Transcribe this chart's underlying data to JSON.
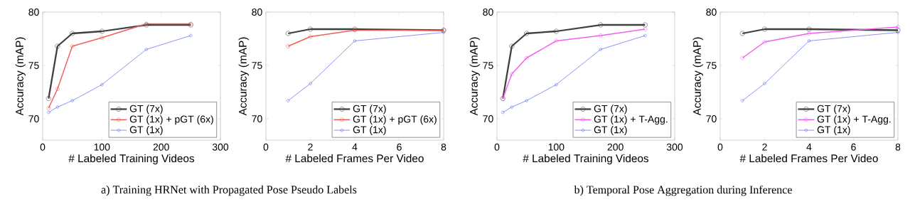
{
  "chart_data": [
    {
      "type": "line",
      "xlabel": "# Labeled Training Videos",
      "ylabel": "Accuracy (mAP)",
      "x": [
        10,
        25,
        50,
        100,
        175,
        250
      ],
      "xlim": [
        0,
        300
      ],
      "ylim": [
        68,
        80
      ],
      "xticks": [
        0,
        100,
        200,
        300
      ],
      "yticks": [
        70,
        75,
        80
      ],
      "marker": "circle",
      "legend": "bottom right",
      "annotations": [
        "a) Training HRNet with Propagated Pose Pseudo Labels"
      ],
      "series": [
        {
          "name": "GT (7x)",
          "color": "#404040",
          "values": [
            71.9,
            76.8,
            78.0,
            78.2,
            78.8,
            78.8
          ]
        },
        {
          "name": "GT (1x) + pGT (6x)",
          "color": "#f0605a",
          "values": [
            71.0,
            72.8,
            76.8,
            77.6,
            78.9,
            78.9
          ]
        },
        {
          "name": "GT (1x)",
          "color": "#5060f0",
          "values": [
            70.6,
            71.1,
            71.7,
            73.2,
            76.5,
            77.8
          ]
        }
      ]
    },
    {
      "type": "line",
      "xlabel": "# Labeled Frames Per Video",
      "ylabel": "Accuracy (mAP)",
      "x": [
        1,
        2,
        4,
        8
      ],
      "xlim": [
        0,
        8
      ],
      "ylim": [
        68,
        80
      ],
      "xticks": [
        0,
        2,
        4,
        6,
        8
      ],
      "yticks": [
        70,
        75,
        80
      ],
      "marker": "circle",
      "legend": "bottom right",
      "series": [
        {
          "name": "GT (7x)",
          "color": "#404040",
          "values": [
            78.0,
            78.4,
            78.4,
            78.3
          ]
        },
        {
          "name": "GT (1x) + pGT (6x)",
          "color": "#f0605a",
          "values": [
            76.8,
            77.7,
            78.3,
            78.3
          ]
        },
        {
          "name": "GT (1x)",
          "color": "#5060f0",
          "values": [
            71.7,
            73.3,
            77.3,
            78.1
          ]
        }
      ]
    },
    {
      "type": "line",
      "xlabel": "# Labeled Training Videos",
      "ylabel": "Accuracy (mAP)",
      "x": [
        10,
        25,
        50,
        100,
        175,
        250
      ],
      "xlim": [
        0,
        300
      ],
      "ylim": [
        68,
        80
      ],
      "xticks": [
        0,
        100,
        200,
        300
      ],
      "yticks": [
        70,
        75,
        80
      ],
      "marker": "circle",
      "legend": "bottom right",
      "annotations": [
        "b) Temporal Pose Aggregation during Inference"
      ],
      "series": [
        {
          "name": "GT (7x)",
          "color": "#404040",
          "values": [
            71.9,
            76.8,
            78.0,
            78.2,
            78.8,
            78.8
          ]
        },
        {
          "name": "GT (1x) + T-Agg.",
          "color": "#f060f0",
          "values": [
            71.9,
            74.2,
            75.7,
            77.3,
            77.8,
            78.4
          ]
        },
        {
          "name": "GT (1x)",
          "color": "#5060f0",
          "values": [
            70.6,
            71.1,
            71.7,
            73.2,
            76.5,
            77.8
          ]
        }
      ]
    },
    {
      "type": "line",
      "xlabel": "# Labeled Frames Per Video",
      "ylabel": "Accuracy (mAP)",
      "x": [
        1,
        2,
        4,
        8
      ],
      "xlim": [
        0,
        8
      ],
      "ylim": [
        68,
        80
      ],
      "xticks": [
        0,
        2,
        4,
        6,
        8
      ],
      "yticks": [
        70,
        75,
        80
      ],
      "marker": "circle",
      "legend": "bottom right",
      "series": [
        {
          "name": "GT (7x)",
          "color": "#404040",
          "values": [
            78.0,
            78.4,
            78.4,
            78.3
          ]
        },
        {
          "name": "GT (1x) + T-Agg.",
          "color": "#f060f0",
          "values": [
            75.7,
            77.2,
            78.0,
            78.6
          ]
        },
        {
          "name": "GT (1x)",
          "color": "#5060f0",
          "values": [
            71.7,
            73.3,
            77.3,
            78.1
          ]
        }
      ]
    }
  ]
}
